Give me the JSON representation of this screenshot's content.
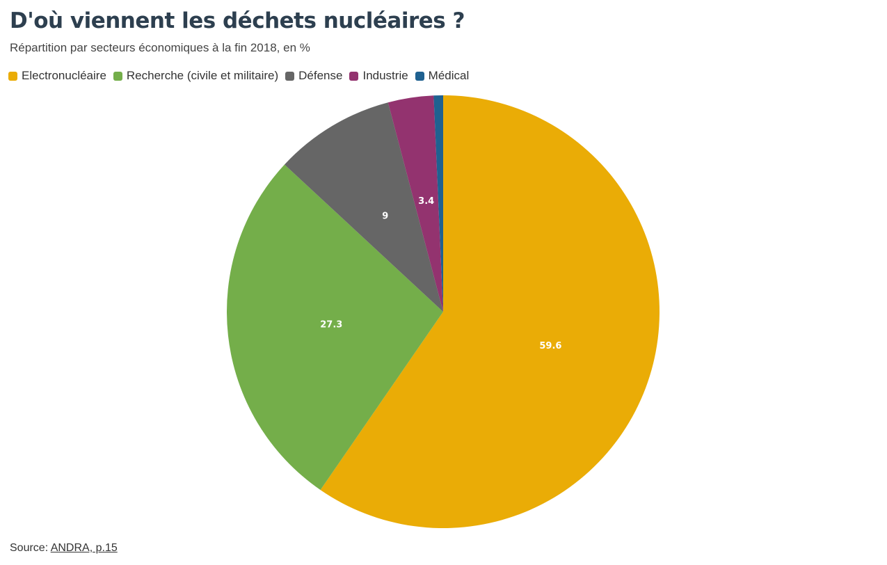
{
  "header": {
    "title": "D'où viennent les déchets nucléaires ?",
    "subtitle": "Répartition par secteurs économiques à la fin 2018, en %"
  },
  "legend": {
    "items": [
      {
        "label": "Electronucléaire",
        "color": "#EAAC06"
      },
      {
        "label": "Recherche (civile et militaire)",
        "color": "#74AE4A"
      },
      {
        "label": "Défense",
        "color": "#666666"
      },
      {
        "label": "Industrie",
        "color": "#93336F"
      },
      {
        "label": "Médical",
        "color": "#1F6190"
      }
    ]
  },
  "footer": {
    "source_prefix": "Source: ",
    "source_link": "ANDRA, p.15"
  },
  "chart_data": {
    "type": "pie",
    "title": "D'où viennent les déchets nucléaires ?",
    "subtitle": "Répartition par secteurs économiques à la fin 2018, en %",
    "legend_position": "top-left",
    "start_angle": "12 o'clock, clockwise",
    "slices": [
      {
        "label": "Electronucléaire",
        "value": 59.6,
        "color": "#EAAC06",
        "shown": "59.6"
      },
      {
        "label": "Recherche (civile et militaire)",
        "value": 27.3,
        "color": "#74AE4A",
        "shown": "27.3"
      },
      {
        "label": "Défense",
        "value": 9,
        "color": "#666666",
        "shown": "9"
      },
      {
        "label": "Industrie",
        "value": 3.4,
        "color": "#93336F",
        "shown": "3.4"
      },
      {
        "label": "Médical",
        "value": 0.7,
        "color": "#1F6190",
        "shown": ""
      }
    ]
  }
}
